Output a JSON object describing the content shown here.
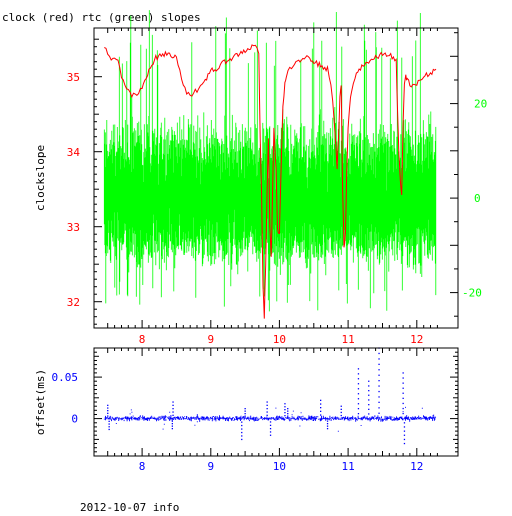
{
  "title": "clock (red) rtc (green) slopes",
  "footer": "2012-10-07 info",
  "colors": {
    "clock": "#ff0000",
    "rtc": "#00ff00",
    "offset": "#0000ff",
    "axis": "#000000"
  },
  "chart_data": [
    {
      "type": "line",
      "xlim": [
        7.3,
        12.6
      ],
      "x_ticks": [
        "8",
        "9",
        "10",
        "11",
        "12"
      ],
      "ylabel": "clockslope",
      "ylim": [
        31.65,
        35.65
      ],
      "y_ticks": [
        "32",
        "33",
        "34",
        "35"
      ],
      "y2lim": [
        -27.5,
        36.0
      ],
      "y2_ticks": [
        "-20",
        "0",
        "20"
      ],
      "series": [
        {
          "name": "clock",
          "color": "#ff0000",
          "axis": "left",
          "x": [
            7.45,
            7.5,
            7.55,
            7.6,
            7.65,
            7.7,
            7.75,
            7.8,
            7.85,
            7.9,
            7.95,
            8.0,
            8.1,
            8.2,
            8.3,
            8.4,
            8.5,
            8.55,
            8.6,
            8.65,
            8.7,
            8.75,
            8.8,
            8.85,
            8.9,
            9.0,
            9.1,
            9.2,
            9.3,
            9.4,
            9.5,
            9.6,
            9.65,
            9.7,
            9.72,
            9.74,
            9.76,
            9.78,
            9.8,
            9.82,
            9.84,
            9.86,
            9.88,
            9.9,
            9.92,
            9.95,
            9.97,
            10.0,
            10.03,
            10.05,
            10.08,
            10.1,
            10.15,
            10.2,
            10.3,
            10.4,
            10.5,
            10.6,
            10.7,
            10.75,
            10.8,
            10.84,
            10.86,
            10.88,
            10.9,
            10.92,
            10.94,
            10.96,
            10.98,
            11.0,
            11.02,
            11.05,
            11.1,
            11.2,
            11.3,
            11.4,
            11.5,
            11.6,
            11.7,
            11.72,
            11.74,
            11.76,
            11.78,
            11.8,
            11.82,
            11.84,
            11.86,
            11.9,
            12.0,
            12.1,
            12.2,
            12.28
          ],
          "y": [
            35.4,
            35.3,
            35.2,
            35.25,
            35.2,
            35.0,
            34.9,
            34.8,
            34.75,
            34.75,
            34.78,
            34.85,
            35.1,
            35.25,
            35.3,
            35.3,
            35.25,
            35.1,
            34.9,
            34.8,
            34.75,
            34.8,
            34.8,
            34.85,
            34.9,
            35.1,
            35.1,
            35.2,
            35.25,
            35.3,
            35.35,
            35.4,
            35.42,
            35.3,
            34.2,
            33.4,
            32.2,
            31.8,
            32.5,
            33.5,
            34.2,
            33.0,
            32.6,
            33.5,
            34.3,
            33.8,
            33.0,
            32.9,
            34.0,
            34.6,
            34.9,
            35.0,
            35.1,
            35.15,
            35.2,
            35.3,
            35.2,
            35.15,
            35.1,
            34.9,
            34.4,
            33.8,
            34.2,
            34.7,
            34.9,
            33.5,
            32.7,
            32.9,
            33.7,
            34.3,
            34.6,
            34.8,
            35.0,
            35.15,
            35.2,
            35.25,
            35.3,
            35.3,
            35.2,
            34.5,
            34.0,
            33.6,
            33.4,
            34.4,
            34.9,
            35.0,
            34.95,
            34.9,
            34.9,
            35.0,
            35.05,
            35.1
          ]
        },
        {
          "name": "rtc",
          "color": "#00ff00",
          "axis": "right",
          "x_range": [
            7.45,
            12.28
          ],
          "center": -2,
          "typical_spread": [
            -12,
            18
          ],
          "extreme_range": [
            -24,
            40
          ]
        }
      ]
    },
    {
      "type": "scatter",
      "xlim": [
        7.3,
        12.6
      ],
      "x_ticks": [
        "8",
        "9",
        "10",
        "11",
        "12"
      ],
      "ylabel": "offset(ms)",
      "ylim": [
        -0.045,
        0.085
      ],
      "y_ticks": [
        "0",
        "0.05"
      ],
      "series": [
        {
          "name": "offset",
          "color": "#0000ff",
          "x_range": [
            7.45,
            12.28
          ],
          "band": 0.004,
          "spikes": [
            [
              7.5,
              0.016
            ],
            [
              7.52,
              -0.013
            ],
            [
              8.45,
              0.02
            ],
            [
              8.44,
              -0.012
            ],
            [
              9.45,
              -0.025
            ],
            [
              9.5,
              0.012
            ],
            [
              9.82,
              0.02
            ],
            [
              9.87,
              -0.02
            ],
            [
              10.08,
              0.018
            ],
            [
              10.12,
              0.012
            ],
            [
              10.6,
              0.022
            ],
            [
              10.7,
              -0.012
            ],
            [
              10.9,
              0.015
            ],
            [
              11.15,
              0.06
            ],
            [
              11.3,
              0.045
            ],
            [
              11.45,
              0.085
            ],
            [
              11.8,
              0.055
            ],
            [
              11.82,
              -0.03
            ]
          ]
        }
      ]
    }
  ]
}
